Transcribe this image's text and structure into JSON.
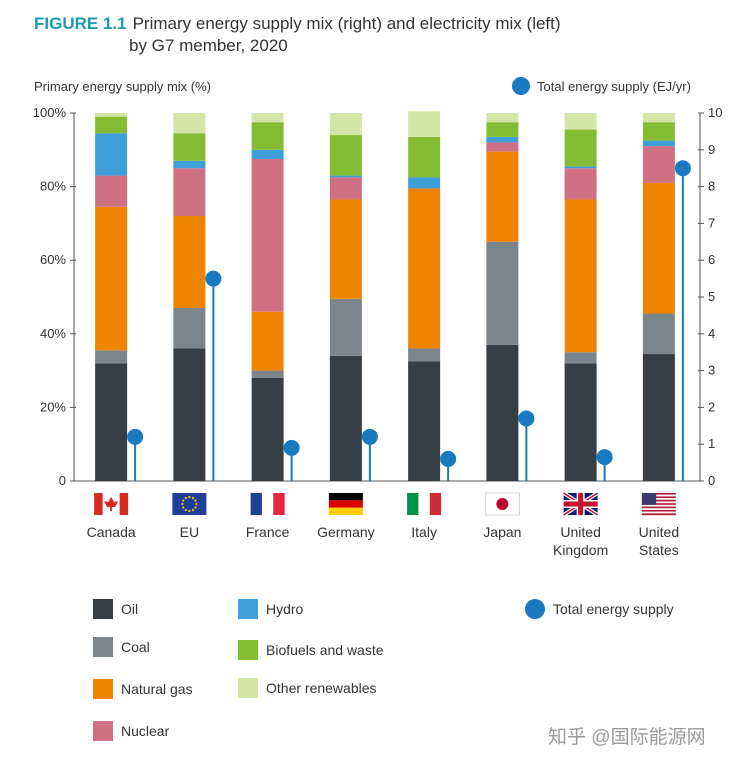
{
  "figure_label": "FIGURE 1.1",
  "title_line1": "Primary energy supply mix (right) and electricity mix (left)",
  "title_line2": "by G7 member, 2020",
  "watermark": "知乎 @国际能源网",
  "colors": {
    "Oil": "#363f45",
    "Coal": "#7a858c",
    "Natural gas": "#ee8400",
    "Nuclear": "#cf7183",
    "Hydro": "#3f9fd8",
    "Biofuels and waste": "#84bc34",
    "Other renewables": "#d4e5a8",
    "Total energy supply": "#1a7abf"
  },
  "legend": [
    {
      "label": "Oil",
      "icon": "square"
    },
    {
      "label": "Coal",
      "icon": "square"
    },
    {
      "label": "Natural gas",
      "icon": "square"
    },
    {
      "label": "Nuclear",
      "icon": "square"
    },
    {
      "label": "Hydro",
      "icon": "square"
    },
    {
      "label": "Biofuels and waste",
      "icon": "square"
    },
    {
      "label": "Other renewables",
      "icon": "square"
    },
    {
      "label": "Total energy supply",
      "icon": "circle"
    }
  ],
  "chart_data": {
    "type": "bar",
    "stacked": true,
    "ylabel": "Primary energy supply mix (%)",
    "y2label": "Total energy supply (EJ/yr)",
    "ylim": [
      0,
      100
    ],
    "y2lim": [
      0,
      10
    ],
    "yticks": [
      "0",
      "20%",
      "40%",
      "60%",
      "80%",
      "100%"
    ],
    "y2ticks": [
      "0",
      "1",
      "2",
      "3",
      "4",
      "5",
      "6",
      "7",
      "8",
      "9",
      "10"
    ],
    "categories": [
      "Canada",
      "EU",
      "France",
      "Germany",
      "Italy",
      "Japan",
      "United Kingdom",
      "United States"
    ],
    "category_lines": [
      [
        "Canada"
      ],
      [
        "EU"
      ],
      [
        "France"
      ],
      [
        "Germany"
      ],
      [
        "Italy"
      ],
      [
        "Japan"
      ],
      [
        "United",
        "Kingdom"
      ],
      [
        "United",
        "States"
      ]
    ],
    "flags": [
      "flag-canada",
      "flag-eu",
      "flag-france",
      "flag-germany",
      "flag-italy",
      "flag-japan",
      "flag-united-kingdom",
      "flag-united-states"
    ],
    "series": [
      {
        "name": "Oil",
        "values": [
          32,
          36,
          28,
          34,
          32.5,
          37,
          32,
          34.5
        ]
      },
      {
        "name": "Coal",
        "values": [
          3.5,
          11,
          2,
          15.5,
          3.5,
          28,
          3,
          11
        ]
      },
      {
        "name": "Natural gas",
        "values": [
          39,
          25,
          16,
          27,
          43.5,
          24.5,
          41.5,
          35.5
        ]
      },
      {
        "name": "Nuclear",
        "values": [
          8.5,
          13,
          41.5,
          6,
          0,
          2.5,
          8.5,
          10
        ]
      },
      {
        "name": "Hydro",
        "values": [
          11.5,
          2,
          2.5,
          0.5,
          3,
          1.5,
          0.5,
          1.5
        ]
      },
      {
        "name": "Biofuels and waste",
        "values": [
          4.5,
          7.5,
          7.5,
          11,
          11,
          4,
          10,
          5
        ]
      },
      {
        "name": "Other renewables",
        "values": [
          1,
          5.5,
          2.5,
          6,
          7,
          2.5,
          4.5,
          2.5
        ]
      }
    ],
    "total_energy_supply": {
      "name": "Total energy supply",
      "unit": "EJ/yr",
      "values": [
        1.2,
        5.5,
        0.9,
        1.2,
        0.6,
        1.7,
        0.65,
        8.5
      ]
    },
    "grid": false,
    "legend_position": "bottom"
  }
}
